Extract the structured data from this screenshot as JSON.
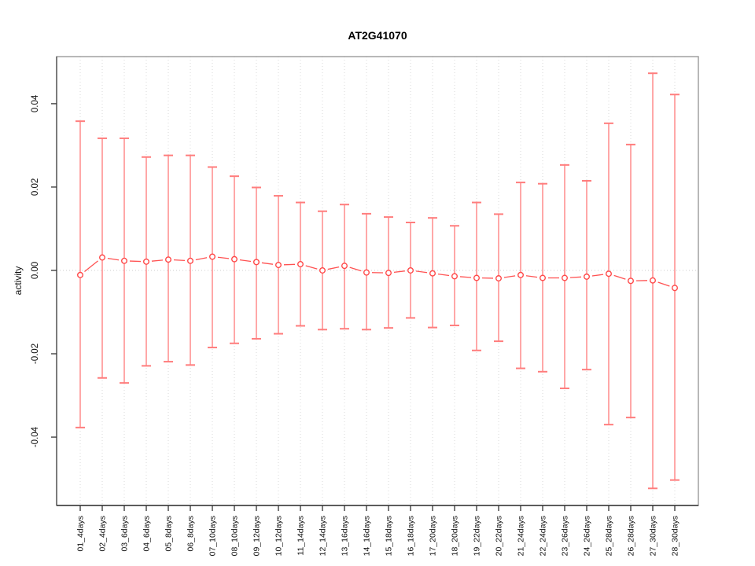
{
  "chart_data": {
    "type": "line",
    "subtype": "points-with-error-bars",
    "title": "AT2G41070",
    "xlabel": "",
    "ylabel": "activity",
    "legend": "none",
    "grid": {
      "vertical_dotted": true,
      "zero_line_dotted": true
    },
    "ylim": [
      -0.0564,
      0.0513
    ],
    "yticks": [
      {
        "value": -0.04,
        "label": "-0.04"
      },
      {
        "value": -0.02,
        "label": "-0.02"
      },
      {
        "value": 0.0,
        "label": "0.00"
      },
      {
        "value": 0.02,
        "label": "0.02"
      },
      {
        "value": 0.04,
        "label": "0.04"
      }
    ],
    "categories": [
      "01_4days",
      "02_4days",
      "03_6days",
      "04_6days",
      "05_8days",
      "06_8days",
      "07_10days",
      "08_10days",
      "09_12days",
      "10_12days",
      "11_14days",
      "12_14days",
      "13_16days",
      "14_16days",
      "15_18days",
      "16_18days",
      "17_20days",
      "18_20days",
      "19_22days",
      "20_22days",
      "21_24days",
      "22_24days",
      "23_26days",
      "24_26days",
      "25_28days",
      "26_28days",
      "27_30days",
      "28_30days"
    ],
    "series": [
      {
        "name": "activity",
        "values": [
          -0.0011,
          0.0031,
          0.0023,
          0.0021,
          0.0026,
          0.0023,
          0.0033,
          0.0027,
          0.002,
          0.0013,
          0.0015,
          0.0,
          0.0011,
          -0.0005,
          -0.0006,
          0.0,
          -0.0007,
          -0.0014,
          -0.0018,
          -0.0019,
          -0.0011,
          -0.0018,
          -0.0018,
          -0.0015,
          -0.0008,
          -0.0025,
          -0.0024,
          -0.0042
        ],
        "upper": [
          0.0358,
          0.0317,
          0.0317,
          0.0272,
          0.0276,
          0.0276,
          0.0248,
          0.0226,
          0.0199,
          0.0179,
          0.0163,
          0.0142,
          0.0158,
          0.0136,
          0.0128,
          0.0115,
          0.0126,
          0.0107,
          0.0163,
          0.0135,
          0.0211,
          0.0208,
          0.0253,
          0.0215,
          0.0353,
          0.0302,
          0.0473,
          0.0422
        ],
        "lower": [
          -0.0377,
          -0.0258,
          -0.027,
          -0.0229,
          -0.0219,
          -0.0227,
          -0.0185,
          -0.0175,
          -0.0164,
          -0.0152,
          -0.0133,
          -0.0142,
          -0.014,
          -0.0142,
          -0.0138,
          -0.0114,
          -0.0137,
          -0.0132,
          -0.0192,
          -0.017,
          -0.0235,
          -0.0243,
          -0.0283,
          -0.0238,
          -0.037,
          -0.0353,
          -0.0523,
          -0.0503
        ]
      }
    ],
    "colors": {
      "error_bar": "#ffa8a8",
      "error_cap": "#ff7d7d",
      "point": "#ff4a4a",
      "segment": "#ff5252",
      "grid": "#dadada",
      "zero_line": "#cccccc",
      "frame": "#999999",
      "axis": "#333333",
      "tick_text": "#111111"
    }
  }
}
